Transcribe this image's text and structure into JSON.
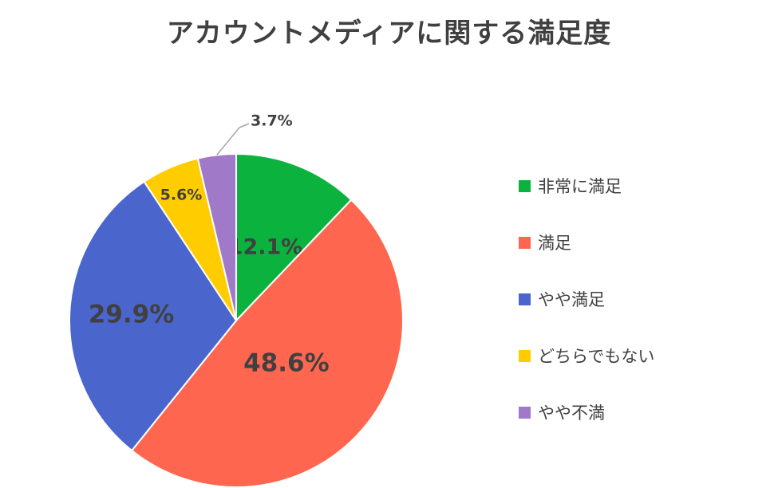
{
  "chart_data": {
    "type": "pie",
    "title": "アカウントメディアに関する満足度",
    "start_angle_deg": 0,
    "direction": "clockwise",
    "legend_position": "right",
    "slices": [
      {
        "label": "非常に満足",
        "value": 12.1,
        "value_label": "12.1%",
        "color": "#0bb33e"
      },
      {
        "label": "満足",
        "value": 48.6,
        "value_label": "48.6%",
        "color": "#ff6650"
      },
      {
        "label": "やや満足",
        "value": 29.9,
        "value_label": "29.9%",
        "color": "#4a66cc"
      },
      {
        "label": "どちらでもない",
        "value": 5.6,
        "value_label": "5.6%",
        "color": "#ffcc00"
      },
      {
        "label": "やや不満",
        "value": 3.7,
        "value_label": "3.7%",
        "color": "#a07ac8"
      }
    ]
  }
}
